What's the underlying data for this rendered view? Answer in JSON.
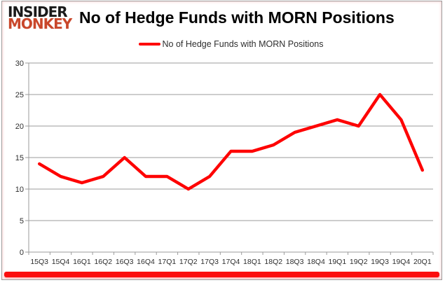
{
  "header": {
    "logo": {
      "line1": "INSIDER",
      "line2": "MONKEY"
    },
    "title": "No of Hedge Funds with MORN Positions"
  },
  "legend": {
    "label": "No of Hedge Funds with MORN Positions"
  },
  "chart_data": {
    "type": "line",
    "title": "No of Hedge Funds with MORN Positions",
    "categories": [
      "15Q3",
      "15Q4",
      "16Q1",
      "16Q2",
      "16Q3",
      "16Q4",
      "17Q1",
      "17Q2",
      "17Q3",
      "17Q4",
      "18Q1",
      "18Q2",
      "18Q3",
      "18Q4",
      "19Q1",
      "19Q2",
      "19Q3",
      "19Q4",
      "20Q1"
    ],
    "series": [
      {
        "name": "No of Hedge Funds with MORN Positions",
        "values": [
          14,
          12,
          11,
          12,
          15,
          12,
          12,
          10,
          12,
          16,
          16,
          17,
          19,
          20,
          21,
          20,
          25,
          21,
          13
        ]
      }
    ],
    "xlabel": "",
    "ylabel": "",
    "ylim": [
      0,
      30
    ],
    "yticks": [
      0,
      5,
      10,
      15,
      20,
      25,
      30
    ],
    "grid": true,
    "legend_position": "top-center"
  },
  "colors": {
    "line": "#fe0000",
    "logo_primary": "#1a1a1a",
    "logo_accent": "#c9472b",
    "grid": "#9b9b9b",
    "axis_text": "#2e2e2e",
    "title_text": "#000000",
    "bottom_bar": "#fb0d0d",
    "background": "#ffffff"
  }
}
